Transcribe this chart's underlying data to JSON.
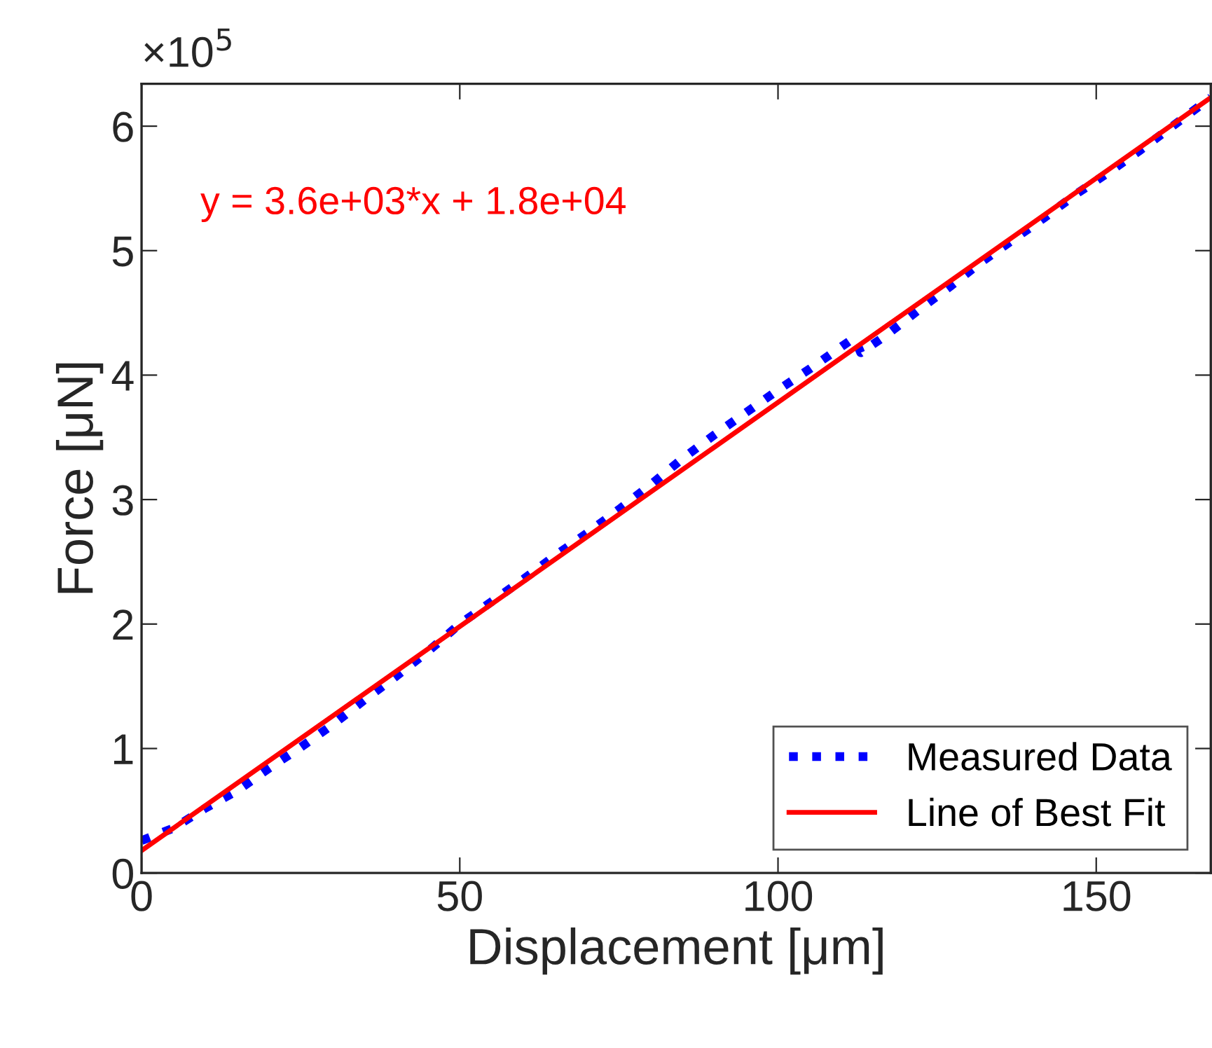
{
  "chart_data": {
    "type": "line",
    "xlabel": "Displacement [μm]",
    "ylabel": "Force [μN]",
    "annotations": [
      "y = 3.6e+03*x + 1.8e+04",
      "×10$^{5}$"
    ],
    "series": [
      {
        "name": "Measured Data",
        "color": "#0000ff",
        "line_style": "dotted",
        "x": [
          0,
          5,
          10,
          15,
          20,
          25,
          30,
          35,
          40,
          45,
          50,
          55,
          60,
          65,
          70,
          75,
          80,
          85,
          90,
          95,
          100,
          105,
          110,
          112,
          113,
          117,
          122,
          127,
          132,
          137,
          142,
          147,
          152,
          157,
          162,
          168
        ],
        "values": [
          0.26,
          0.36,
          0.52,
          0.66,
          0.84,
          1.01,
          1.19,
          1.39,
          1.58,
          1.78,
          2.0,
          2.18,
          2.36,
          2.55,
          2.73,
          2.92,
          3.12,
          3.33,
          3.52,
          3.7,
          3.88,
          4.05,
          4.23,
          4.3,
          4.18,
          4.32,
          4.52,
          4.71,
          4.91,
          5.09,
          5.27,
          5.46,
          5.63,
          5.81,
          6.0,
          6.23
        ]
      },
      {
        "name": "Line of Best Fit",
        "color": "#ff0000",
        "line_style": "solid",
        "x": [
          0,
          168
        ],
        "values": [
          0.18,
          6.23
        ]
      }
    ],
    "xlim": [
      0,
      168
    ],
    "ylim": [
      0,
      6.34
    ],
    "xticks": [
      0,
      50,
      100,
      150
    ],
    "yticks": [
      0,
      1,
      2,
      3,
      4,
      5,
      6
    ],
    "grid": false,
    "legend": "bottom right",
    "marker": "none"
  }
}
